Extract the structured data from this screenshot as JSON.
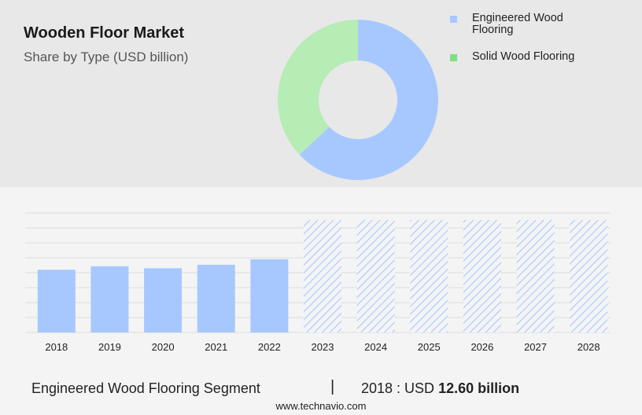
{
  "header": {
    "title": "Wooden Floor Market",
    "subtitle": "Share by Type (USD billion)"
  },
  "chart_data": [
    {
      "type": "pie",
      "variant": "donut",
      "title": "",
      "labels": [
        "Engineered Wood Flooring",
        "Solid Wood Flooring"
      ],
      "values": [
        63,
        37
      ],
      "colors": [
        "#a6c8ff",
        "#b5edb5"
      ],
      "legend": {
        "placement": "top-right",
        "items": [
          {
            "label": "Engineered Wood Flooring",
            "color": "#a6c8ff"
          },
          {
            "label": "Solid Wood Flooring",
            "color": "#7ee085"
          }
        ]
      }
    },
    {
      "type": "bar",
      "series_name": "Engineered Wood Flooring",
      "categories": [
        "2018",
        "2019",
        "2020",
        "2021",
        "2022",
        "2023",
        "2024",
        "2025",
        "2026",
        "2027",
        "2028"
      ],
      "values": [
        12.6,
        13.3,
        12.9,
        13.6,
        14.7,
        null,
        null,
        null,
        null,
        null,
        null
      ],
      "forecast_categories": [
        "2023",
        "2024",
        "2025",
        "2026",
        "2027",
        "2028"
      ],
      "ylim": [
        0,
        24
      ],
      "grid": true,
      "bar_color": "#a6c8ff",
      "forecast_pattern": "diagonal-hatch"
    }
  ],
  "footer": {
    "segment_label": "Engineered Wood Flooring Segment",
    "separator": "|",
    "value_prefix": "2018 : USD ",
    "value_bold": "12.60 billion",
    "source": "www.technavio.com"
  }
}
